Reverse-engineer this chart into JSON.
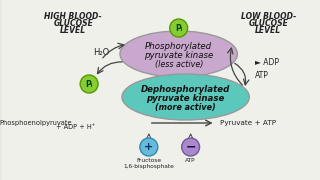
{
  "bg_color": "#e8e8e0",
  "top_ellipse_fc": "#c8a8cc",
  "top_ellipse_ec": "#999999",
  "bot_ellipse_fc": "#5cc8bc",
  "bot_ellipse_ec": "#999999",
  "pi_circle_fc": "#88cc33",
  "pi_circle_ec": "#559900",
  "plus_circle_fc": "#66bbdd",
  "plus_circle_ec": "#3388aa",
  "minus_circle_fc": "#aa88cc",
  "minus_circle_ec": "#775599",
  "high_blood_label": "HIGH BLOOD-\nGLUCOSE\nLEVEL",
  "low_blood_label": "LOW BLOOD-\nGLUCOSE\nLEVEL",
  "h2o_label": "H₂O",
  "pi_label": "Pᵢ",
  "adp_label": "► ADP",
  "atp_label": "ATP",
  "pep_label": "Phosphoenolpyruvate",
  "pep_label2": "+ ADP + H⁺",
  "pyruvate_label": "Pyruvate + ATP",
  "fructose_label": "Fructose\n1,6-bisphosphate",
  "atp_bottom_label": "ATP",
  "plus_label": "+",
  "minus_label": "−",
  "top_e_l1": "Phosphorylated",
  "top_e_l2": "pyruvate kinase",
  "top_e_l3": "(less active)",
  "bot_e_l1": "Dephosphorylated",
  "bot_e_l2": "pyruvate kinase",
  "bot_e_l3": "(more active)",
  "arrow_color": "#444444",
  "text_color": "#222222"
}
